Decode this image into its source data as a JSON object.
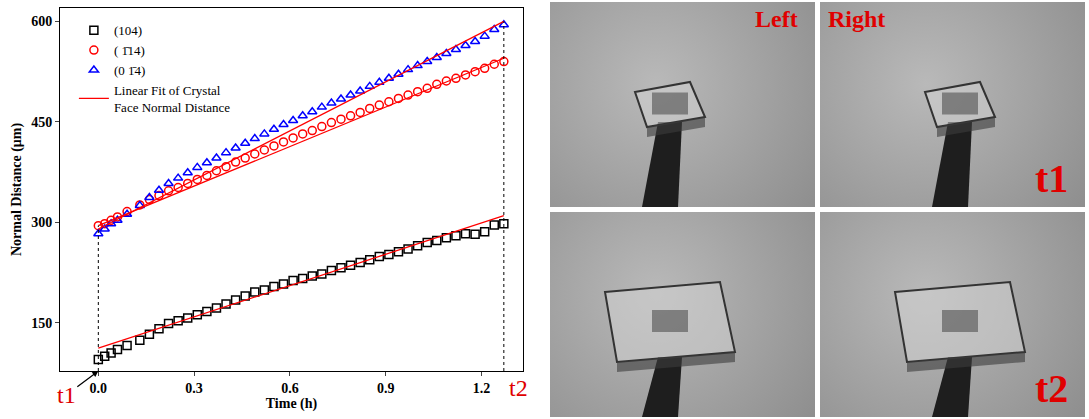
{
  "chart_data": {
    "type": "scatter",
    "x": [
      0,
      0.02,
      0.04,
      0.06,
      0.09,
      0.13,
      0.16,
      0.19,
      0.22,
      0.25,
      0.28,
      0.31,
      0.34,
      0.37,
      0.4,
      0.43,
      0.46,
      0.49,
      0.52,
      0.55,
      0.58,
      0.61,
      0.64,
      0.67,
      0.7,
      0.73,
      0.76,
      0.79,
      0.82,
      0.85,
      0.88,
      0.91,
      0.94,
      0.97,
      1.0,
      1.03,
      1.06,
      1.09,
      1.12,
      1.15,
      1.18,
      1.21,
      1.24,
      1.27
    ],
    "series": [
      {
        "name": "(104)",
        "color": "#000000",
        "marker": "square-open",
        "values": [
          95,
          100,
          105,
          110,
          116,
          124,
          133,
          141,
          149,
          153,
          157,
          162,
          167,
          172,
          178,
          184,
          190,
          196,
          199,
          204,
          208,
          213,
          216,
          220,
          223,
          228,
          232,
          236,
          240,
          244,
          249,
          252,
          256,
          260,
          265,
          270,
          273,
          277,
          280,
          283,
          282,
          286,
          296,
          298
        ]
      },
      {
        "name": "( 1̄14)",
        "color": "#ff0000",
        "marker": "circle-open",
        "values": [
          295,
          298,
          303,
          308,
          316,
          326,
          334,
          340,
          347,
          352,
          358,
          364,
          370,
          377,
          383,
          390,
          396,
          402,
          408,
          414,
          420,
          426,
          432,
          437,
          443,
          449,
          454,
          459,
          464,
          470,
          475,
          480,
          485,
          490,
          495,
          500,
          506,
          511,
          515,
          520,
          525,
          530,
          536,
          540
        ]
      },
      {
        "name": "(0 1̄4)",
        "color": "#0000ff",
        "marker": "triangle-up-open",
        "values": [
          283,
          290,
          298,
          303,
          312,
          325,
          337,
          348,
          358,
          366,
          374,
          382,
          389,
          396,
          404,
          411,
          418,
          425,
          432,
          439,
          446,
          452,
          459,
          465,
          472,
          478,
          484,
          490,
          496,
          503,
          509,
          515,
          521,
          528,
          534,
          540,
          546,
          552,
          558,
          564,
          570,
          578,
          588,
          595
        ]
      },
      {
        "name": "Linear Fit of Crystal Face Normal Distance",
        "type": "line",
        "color": "#ff0000",
        "line_style": "solid",
        "x": [
          0,
          1.27,
          1.27,
          0,
          1.27,
          1.27,
          0,
          1.27
        ],
        "values": [
          112,
          310,
          null,
          295,
          545,
          null,
          290,
          600
        ]
      }
    ],
    "xlabel": "Time (h)",
    "ylabel": "Normal Distance (μm)",
    "xlim": [
      -0.12,
      1.33
    ],
    "ylim": [
      78,
      620
    ],
    "xticks": [
      {
        "value": 0,
        "label": "0.0"
      },
      0.3,
      0.6,
      0.9,
      1.2
    ],
    "yticks": [
      150,
      300,
      450,
      600
    ],
    "grid": false,
    "legend": "upper left",
    "annotations": [
      {
        "text": "t1",
        "x": 0,
        "color": "#e00000"
      },
      {
        "text": "t2",
        "x": 1.27,
        "color": "#e00000"
      }
    ]
  },
  "images": {
    "column_labels": [
      "Left",
      "Right"
    ],
    "row_labels": [
      "t1",
      "t2"
    ]
  }
}
